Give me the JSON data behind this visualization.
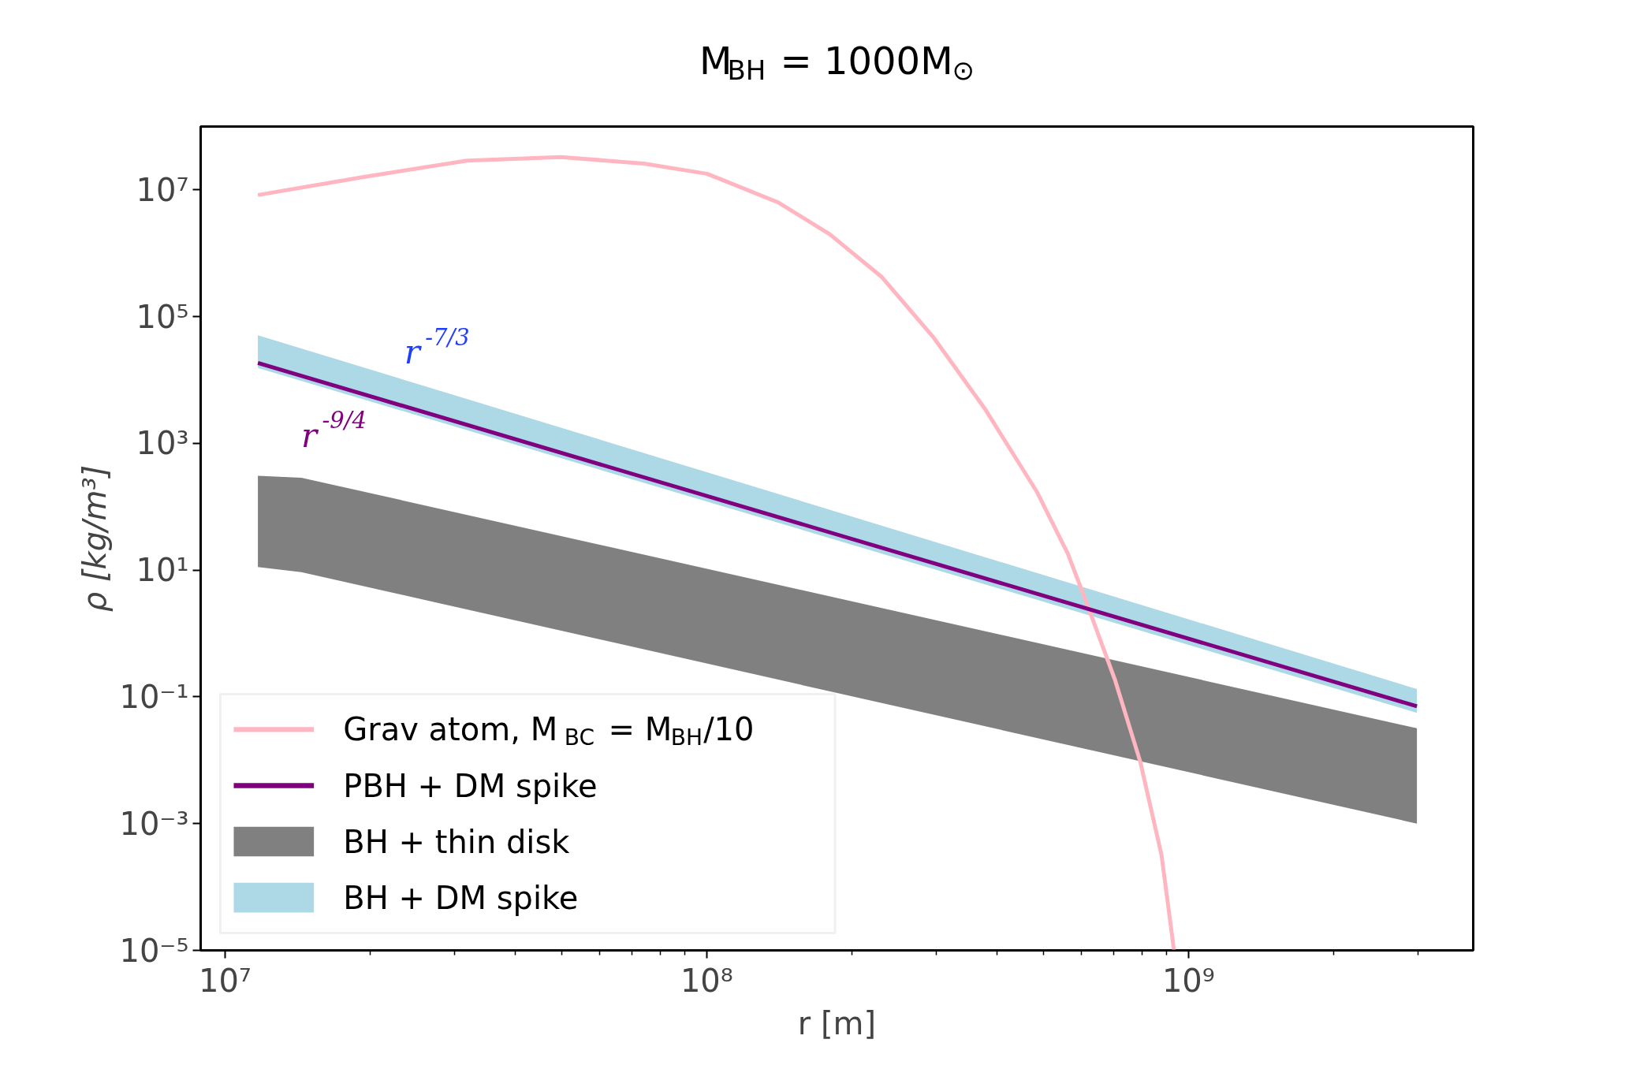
{
  "chart_data": {
    "type": "line",
    "title": "M$_{BH}$ = 1000M$_{⊙}$",
    "xlabel": "r [m]",
    "ylabel": "ρ [kg/m³]",
    "log": "xy",
    "xlim": [
      8900000.0,
      3900000000.0
    ],
    "ylim": [
      1e-05,
      100000000.0
    ],
    "xticks": [
      {
        "value": 10000000.0,
        "label": "10⁷"
      },
      {
        "value": 20000000.0,
        "label": null
      },
      {
        "value": 30000000.0,
        "label": null
      },
      {
        "value": 40000000.0,
        "label": null
      },
      {
        "value": 50000000.0,
        "label": null
      },
      {
        "value": 60000000.0,
        "label": null
      },
      {
        "value": 70000000.0,
        "label": null
      },
      {
        "value": 80000000.0,
        "label": null
      },
      {
        "value": 90000000.0,
        "label": null
      },
      {
        "value": 100000000.0,
        "label": "10⁸"
      },
      {
        "value": 200000000.0,
        "label": null
      },
      {
        "value": 300000000.0,
        "label": null
      },
      {
        "value": 400000000.0,
        "label": null
      },
      {
        "value": 500000000.0,
        "label": null
      },
      {
        "value": 600000000.0,
        "label": null
      },
      {
        "value": 700000000.0,
        "label": null
      },
      {
        "value": 800000000.0,
        "label": null
      },
      {
        "value": 900000000.0,
        "label": null
      },
      {
        "value": 1000000000.0,
        "label": "10⁹"
      },
      {
        "value": 2000000000.0,
        "label": null
      },
      {
        "value": 3000000000.0,
        "label": null
      }
    ],
    "yticks": [
      {
        "value": 1e-05,
        "label": "10⁻⁵"
      },
      {
        "value": 0.001,
        "label": "10⁻³"
      },
      {
        "value": 0.1,
        "label": "10⁻¹"
      },
      {
        "value": 10,
        "label": "10¹"
      },
      {
        "value": 1000,
        "label": "10³"
      },
      {
        "value": 100000.0,
        "label": "10⁵"
      },
      {
        "value": 10000000.0,
        "label": "10⁷"
      }
    ],
    "grid": false,
    "legend": "bottom left",
    "series": [
      {
        "name": "Grav atom, M$_{BC}$ = M$_{BH}$/10",
        "color": "#ffb6c1",
        "x": [
          11700000.0,
          19400000.0,
          31800000.0,
          49800000.0,
          74000000.0,
          100000000.0,
          110000000.0,
          141000000.0,
          180000000.0,
          231000000.0,
          295000000.0,
          378000000.0,
          485000000.0,
          562000000.0,
          617000000.0,
          703000000.0,
          794000000.0,
          879000000.0,
          933000000.0
        ],
        "values": [
          8300000.0,
          16000000.0,
          29000000.0,
          33000000.0,
          26000000.0,
          18000000.0,
          13500000.0,
          6300000.0,
          2000000.0,
          420000.0,
          48000.0,
          3500.0,
          170,
          18,
          2.8,
          0.19,
          0.0095,
          0.00032,
          1e-05
        ]
      },
      {
        "name": "PBH + DM spike",
        "color": "#800080",
        "x": [
          11700000.0,
          2980000000.0
        ],
        "values": [
          18600.0,
          0.071
        ]
      },
      {
        "name": "BH + thin disk",
        "type": "area",
        "color": "#808080",
        "x": [
          11700000.0,
          14400000.0,
          2980000000.0
        ],
        "values": [
          null,
          null,
          null
        ],
        "upper": [
          309,
          288,
          0.032
        ],
        "lower": [
          11.2,
          9.3,
          0.001
        ]
      },
      {
        "name": "BH + DM spike",
        "type": "area",
        "color": "#add8e6",
        "x": [
          11700000.0,
          2980000000.0
        ],
        "values": [
          null,
          null
        ],
        "upper": [
          51000.0,
          0.133
        ],
        "lower": [
          15500.0,
          0.056
        ]
      }
    ],
    "annotations": [
      "r$^{-7/3}$",
      "r$^{-9/4}$"
    ]
  }
}
